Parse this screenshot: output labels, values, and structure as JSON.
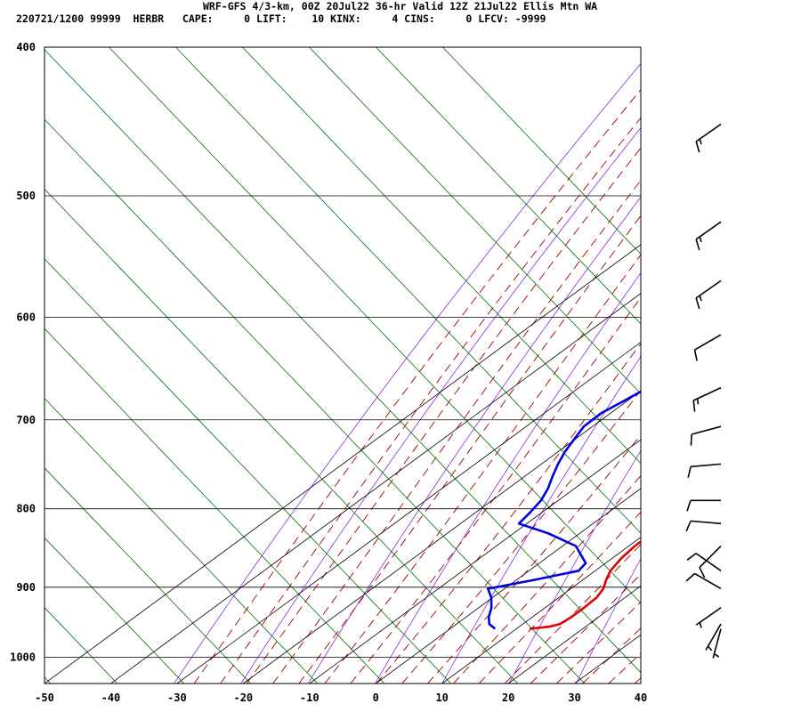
{
  "header": {
    "line1": "WRF-GFS 4/3-km, 00Z 20Jul22 36-hr Valid 12Z 21Jul22 Ellis Mtn WA",
    "line2": "220721/1200 99999  HERBR   CAPE:     0 LIFT:    10 KINX:     4 CINS:     0 LFCV: -9999"
  },
  "chart_data": {
    "type": "line",
    "xlim": [
      -50,
      40
    ],
    "ylim_hPa": [
      1040,
      400
    ],
    "y_log_scale": true,
    "skewed": true,
    "grid": true,
    "x_ticks": [
      "-50",
      "-40",
      "-30",
      "-20",
      "-10",
      "0",
      "10",
      "20",
      "30",
      "40"
    ],
    "y_ticks": [
      "400",
      "500",
      "600",
      "700",
      "800",
      "900",
      "1000"
    ],
    "series": [
      {
        "color": "#e00000",
        "points": [
          [
            12.0,
            958
          ],
          [
            14.5,
            955
          ],
          [
            15.6,
            951
          ],
          [
            15.9,
            941
          ],
          [
            15.9,
            928
          ],
          [
            15.7,
            914
          ],
          [
            14.9,
            902
          ],
          [
            13.5,
            890
          ],
          [
            12.3,
            878
          ],
          [
            11.4,
            862
          ],
          [
            10.9,
            846
          ],
          [
            10.9,
            832
          ],
          [
            10.8,
            818
          ],
          [
            10.4,
            804
          ],
          [
            9.8,
            790
          ],
          [
            9.0,
            776
          ],
          [
            8.3,
            762
          ],
          [
            7.5,
            748
          ],
          [
            6.8,
            734
          ],
          [
            6.0,
            720
          ],
          [
            5.2,
            707
          ],
          [
            4.3,
            693
          ],
          [
            3.4,
            680
          ],
          [
            2.5,
            667
          ],
          [
            1.5,
            654
          ],
          [
            0.6,
            641
          ],
          [
            -0.4,
            628
          ],
          [
            -1.4,
            616
          ],
          [
            -2.4,
            604
          ],
          [
            -3.4,
            592
          ],
          [
            -4.3,
            580
          ],
          [
            -5.2,
            568
          ],
          [
            -6.0,
            556
          ],
          [
            -7.4,
            544
          ],
          [
            -8.7,
            532
          ],
          [
            -10.0,
            520
          ],
          [
            -11.2,
            508
          ],
          [
            -12.4,
            496
          ],
          [
            -13.6,
            484
          ],
          [
            -14.8,
            472
          ],
          [
            -16.1,
            460
          ],
          [
            -17.3,
            449
          ]
        ]
      },
      {
        "color": "#0000e0",
        "points": [
          [
            6.8,
            958
          ],
          [
            6.0,
            955
          ],
          [
            4.9,
            951
          ],
          [
            3.4,
            941
          ],
          [
            1.9,
            928
          ],
          [
            -0.2,
            914
          ],
          [
            -2.5,
            902
          ],
          [
            2.7,
            890
          ],
          [
            7.5,
            878
          ],
          [
            7.0,
            868
          ],
          [
            2.0,
            846
          ],
          [
            -4.8,
            830
          ],
          [
            -11.2,
            818
          ],
          [
            -11.8,
            804
          ],
          [
            -12.6,
            790
          ],
          [
            -14.0,
            776
          ],
          [
            -15.8,
            762
          ],
          [
            -17.5,
            748
          ],
          [
            -19.0,
            734
          ],
          [
            -20.2,
            720
          ],
          [
            -21.3,
            707
          ],
          [
            -21.4,
            693
          ],
          [
            -20.5,
            680
          ],
          [
            -19.6,
            667
          ],
          [
            -19.1,
            654
          ],
          [
            -20.1,
            641
          ],
          [
            -21.1,
            628
          ],
          [
            -21.9,
            616
          ],
          [
            -22.7,
            606
          ],
          [
            -25.7,
            592
          ],
          [
            -28.5,
            580
          ],
          [
            -31.3,
            568
          ],
          [
            -34.0,
            556
          ],
          [
            -34.8,
            544
          ],
          [
            -36.0,
            532
          ],
          [
            -37.2,
            520
          ],
          [
            -38.4,
            508
          ],
          [
            -39.6,
            496
          ],
          [
            -40.8,
            484
          ],
          [
            -42.0,
            472
          ],
          [
            -43.2,
            460
          ],
          [
            -44.2,
            449
          ]
        ]
      }
    ],
    "wind_barbs": [
      {
        "p": 449,
        "dir": 235,
        "kt": 15
      },
      {
        "p": 520,
        "dir": 235,
        "kt": 15
      },
      {
        "p": 568,
        "dir": 235,
        "kt": 15
      },
      {
        "p": 616,
        "dir": 240,
        "kt": 10
      },
      {
        "p": 667,
        "dir": 245,
        "kt": 15
      },
      {
        "p": 707,
        "dir": 255,
        "kt": 10
      },
      {
        "p": 748,
        "dir": 265,
        "kt": 10
      },
      {
        "p": 790,
        "dir": 270,
        "kt": 10
      },
      {
        "p": 818,
        "dir": 275,
        "kt": 10
      },
      {
        "p": 846,
        "dir": 225,
        "kt": 10
      },
      {
        "p": 878,
        "dir": 305,
        "kt": 10
      },
      {
        "p": 902,
        "dir": 300,
        "kt": 10
      },
      {
        "p": 928,
        "dir": 235,
        "kt": 5
      },
      {
        "p": 951,
        "dir": 210,
        "kt": 5
      },
      {
        "p": 958,
        "dir": 195,
        "kt": 5
      }
    ]
  }
}
